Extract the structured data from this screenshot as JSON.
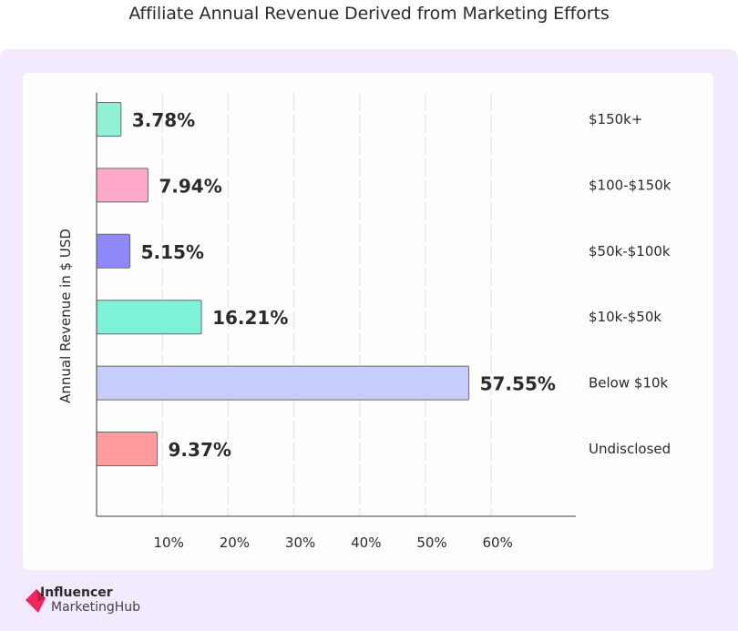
{
  "header": {
    "title": "Affiliate Annual Revenue Derived from Marketing Efforts"
  },
  "branding": {
    "line1": "Influencer",
    "line2": "MarketingHub",
    "mark_color": "#f2275d"
  },
  "chart_data": {
    "type": "bar",
    "orientation": "horizontal",
    "title": "Affiliate Annual Revenue Derived from Marketing Efforts",
    "xlabel": "",
    "ylabel": "Annual Revenue in $ USD",
    "xlim": [
      0,
      73
    ],
    "grid": true,
    "value_suffix": "%",
    "x_ticks": [
      "10%",
      "20%",
      "30%",
      "40%",
      "50%",
      "60%"
    ],
    "x_tick_values": [
      10,
      20,
      30,
      40,
      50,
      60
    ],
    "categories": [
      "$150k+",
      "$100-$150k",
      "$50k-$100k",
      "$10k-$50k",
      "Below $10k",
      "Undisclosed"
    ],
    "values": [
      3.78,
      7.94,
      5.15,
      16.21,
      57.55,
      9.37
    ],
    "labels": [
      "3.78%",
      "7.94%",
      "5.15%",
      "16.21%",
      "57.55%",
      "9.37%"
    ],
    "colors": [
      "#8ff0d6",
      "#ffaacb",
      "#8e88fb",
      "#7ef2d9",
      "#c7cdfb",
      "#ff9b9e"
    ],
    "category_label_position": "right"
  }
}
